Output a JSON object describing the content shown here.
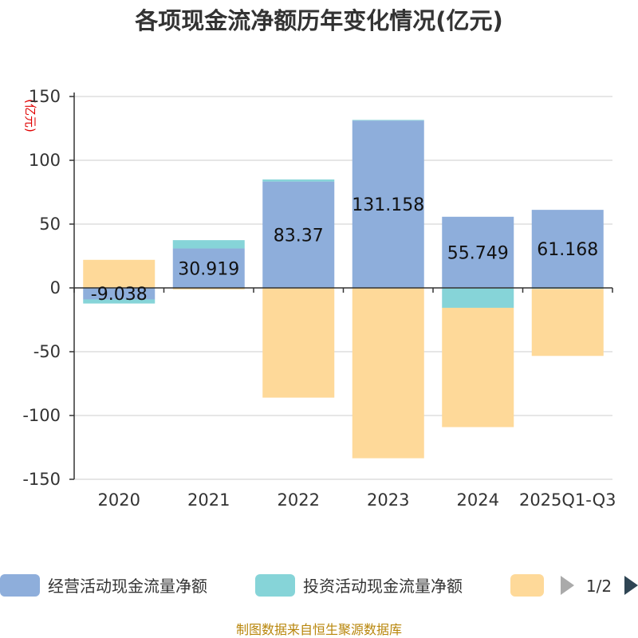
{
  "chart_data": {
    "type": "bar",
    "stacked": true,
    "title": "各项现金流净额历年变化情况(亿元)",
    "ylabel": "(亿元)",
    "xlabel": "",
    "categories": [
      "2020",
      "2021",
      "2022",
      "2023",
      "2024",
      "2025Q1-Q3"
    ],
    "ylim": [
      -150,
      150
    ],
    "yticks": [
      150,
      100,
      50,
      0,
      -50,
      -100,
      -150
    ],
    "grid": true,
    "series": [
      {
        "name": "经营活动现金流量净额",
        "color": "#8eaedb",
        "values": [
          -9.038,
          30.919,
          83.37,
          131.158,
          55.749,
          61.168
        ]
      },
      {
        "name": "投资活动现金流量净额",
        "color": "#86d4d8",
        "values": [
          -3.2,
          6.5,
          1.6,
          0.5,
          -15.6,
          -0.8
        ]
      },
      {
        "name": "",
        "color": "#fed999",
        "values": [
          22.0,
          -1.2,
          -86.0,
          -133.5,
          -93.5,
          -52.5
        ]
      }
    ],
    "data_labels": [
      "-9.038",
      "30.919",
      "83.37",
      "131.158",
      "55.749",
      "61.168"
    ],
    "legend": {
      "position": "bottom",
      "page": "1/2"
    }
  },
  "footer": {
    "source": "制图数据来自恒生聚源数据库"
  }
}
